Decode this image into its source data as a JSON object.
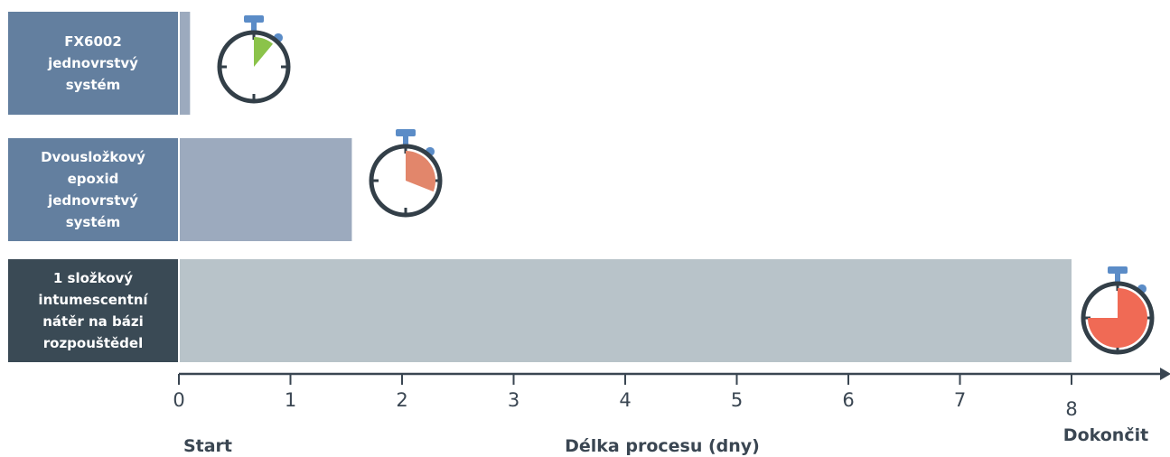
{
  "chart_data": {
    "type": "bar",
    "orientation": "horizontal",
    "categories": [
      [
        "FX6002",
        "jednovrstvý",
        "systém"
      ],
      [
        "Dvousložkový",
        "epoxid",
        "jednovrstvý",
        "systém"
      ],
      [
        "1 složkový",
        "intumescentní",
        "nátěr na bázi",
        "rozpouštědel"
      ]
    ],
    "values": [
      0.1,
      1.55,
      8
    ],
    "label_colors": [
      "#637f9f",
      "#637f9f",
      "#3a4a55"
    ],
    "bar_colors": [
      "#9caabe",
      "#9caabe",
      "#b8c3c9"
    ],
    "timer_colors": [
      "#8bc34a",
      "#e2866b",
      "#f06a55"
    ],
    "timer_fill_fractions": [
      0.11,
      0.31,
      0.75
    ],
    "x_ticks": [
      "0",
      "1",
      "2",
      "3",
      "4",
      "5",
      "6",
      "7",
      "8"
    ],
    "xlim": [
      0,
      8
    ],
    "xlabel": "Délka procesu (dny)",
    "start_label": "Start",
    "end_label": "Dokončit"
  }
}
